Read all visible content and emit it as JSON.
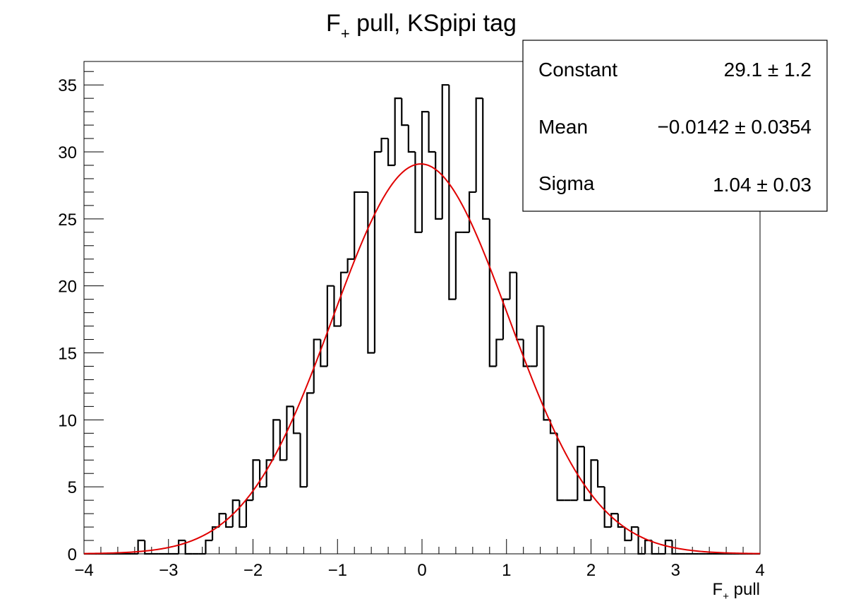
{
  "chart_data": {
    "type": "bar",
    "title": "F+ pull, KSpipi tag",
    "title_parts": {
      "main": "F",
      "sub": "+",
      "rest": " pull, KSpipi tag"
    },
    "xlabel": "F+ pull",
    "xlabel_parts": {
      "main": "F",
      "sub": "+",
      "rest": " pull"
    },
    "ylabel": "",
    "xlim": [
      -4,
      4
    ],
    "ylim": [
      0,
      36.75
    ],
    "xticks": [
      -4,
      -3,
      -2,
      -1,
      0,
      1,
      2,
      3,
      4
    ],
    "xtick_labels": [
      "−4",
      "−3",
      "−2",
      "−1",
      "0",
      "1",
      "2",
      "3",
      "4"
    ],
    "yticks": [
      0,
      5,
      10,
      15,
      20,
      25,
      30,
      35
    ],
    "ytick_labels": [
      "0",
      "5",
      "10",
      "15",
      "20",
      "25",
      "30",
      "35"
    ],
    "bin_width": 0.08,
    "bin_low_edges": [
      -4.0,
      -3.92,
      -3.84,
      -3.76,
      -3.68,
      -3.6,
      -3.52,
      -3.44,
      -3.36,
      -3.28,
      -3.2,
      -3.12,
      -3.04,
      -2.96,
      -2.88,
      -2.8,
      -2.72,
      -2.64,
      -2.56,
      -2.48,
      -2.4,
      -2.32,
      -2.24,
      -2.16,
      -2.08,
      -2.0,
      -1.92,
      -1.84,
      -1.76,
      -1.68,
      -1.6,
      -1.52,
      -1.44,
      -1.36,
      -1.28,
      -1.2,
      -1.12,
      -1.04,
      -0.96,
      -0.88,
      -0.8,
      -0.72,
      -0.64,
      -0.56,
      -0.48,
      -0.4,
      -0.32,
      -0.24,
      -0.16,
      -0.08,
      0.0,
      0.08,
      0.16,
      0.24,
      0.32,
      0.4,
      0.48,
      0.56,
      0.64,
      0.72,
      0.8,
      0.88,
      0.96,
      1.04,
      1.12,
      1.2,
      1.28,
      1.36,
      1.44,
      1.52,
      1.6,
      1.68,
      1.76,
      1.84,
      1.92,
      2.0,
      2.08,
      2.16,
      2.24,
      2.32,
      2.4,
      2.48,
      2.56,
      2.64,
      2.72,
      2.8,
      2.88,
      2.96,
      3.04,
      3.12,
      3.2,
      3.28,
      3.36,
      3.44,
      3.52,
      3.6,
      3.68,
      3.76,
      3.84,
      3.92
    ],
    "counts": [
      0,
      0,
      0,
      0,
      0,
      0,
      0,
      0,
      1,
      0,
      0,
      0,
      0,
      0,
      1,
      0,
      0,
      0,
      1,
      2,
      3,
      2,
      4,
      2,
      4,
      7,
      5,
      7,
      10,
      7,
      11,
      9,
      5,
      12,
      16,
      14,
      20,
      17,
      21,
      22,
      27,
      27,
      15,
      30,
      31,
      29,
      34,
      32,
      30,
      24,
      33,
      30,
      25,
      35,
      19,
      24,
      24,
      27,
      34,
      25,
      14,
      16,
      19,
      21,
      16,
      14,
      14,
      17,
      10,
      9,
      4,
      4,
      4,
      8,
      4,
      7,
      5,
      2,
      3,
      2,
      1,
      2,
      0,
      1,
      0,
      0,
      1,
      0,
      0,
      0,
      0,
      0,
      0,
      0,
      0,
      0,
      0,
      0,
      0,
      0
    ],
    "fit": {
      "function": "gaus",
      "constant": 29.1,
      "mean": -0.0142,
      "sigma": 1.04
    },
    "colors": {
      "histogram": "#000000",
      "fit": "#e00000",
      "frame": "#000000"
    },
    "stats_box": {
      "placement": "top-right",
      "rows": [
        {
          "label": "Constant",
          "value": "29.1 ± 1.2"
        },
        {
          "label": "Mean",
          "value": "−0.0142 ± 0.0354"
        },
        {
          "label": "Sigma",
          "value": "1.04 ± 0.03"
        }
      ]
    }
  }
}
